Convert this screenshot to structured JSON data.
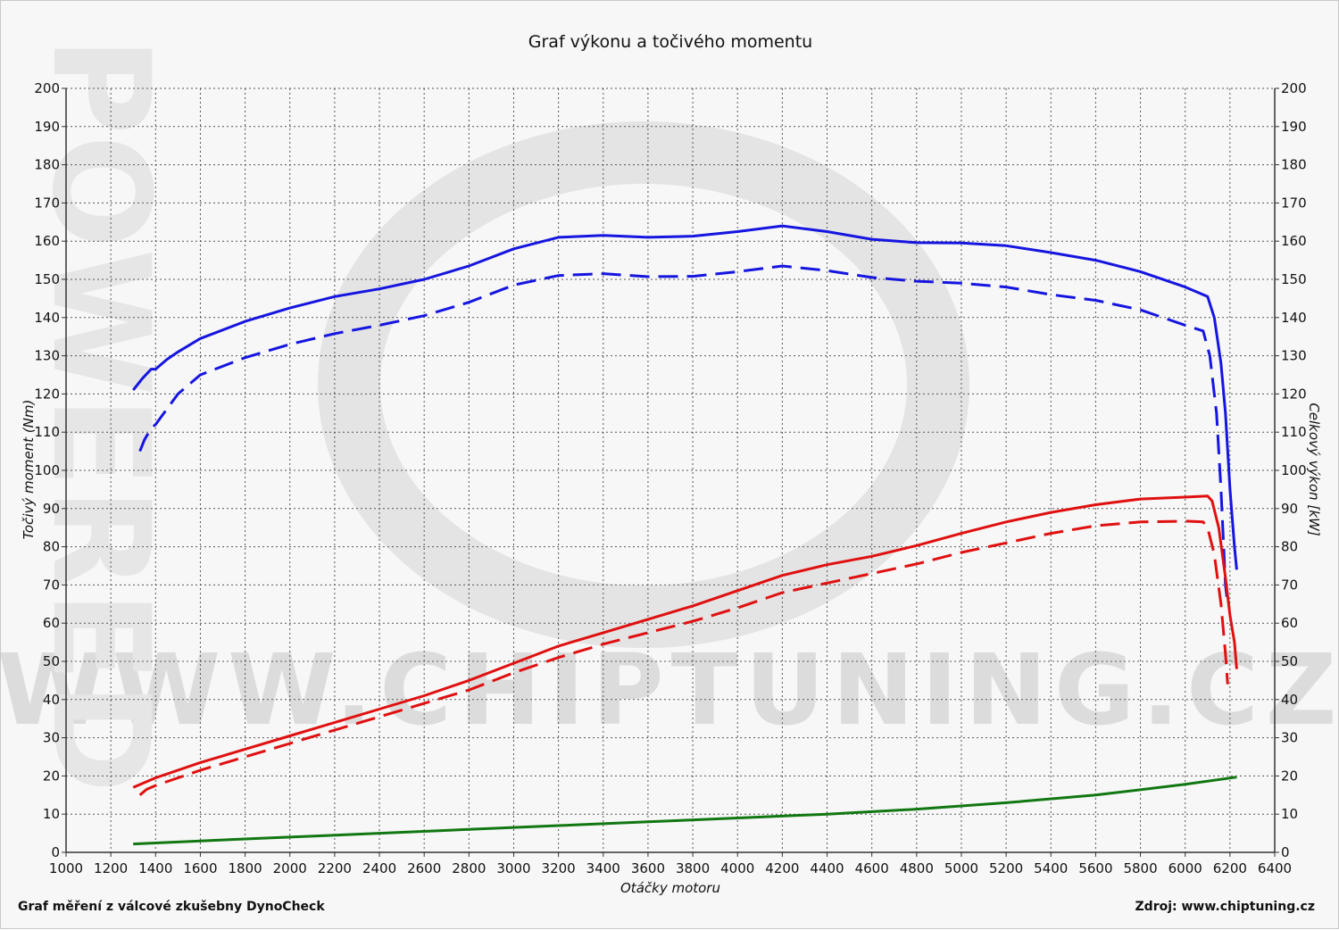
{
  "chart_data": {
    "type": "line",
    "title": "Graf výkonu a točivého momentu",
    "xlabel": "Otáčky motoru",
    "ylabel_left": "Točivý moment (Nm)",
    "ylabel_right": "Celkový výkon [kW]",
    "xlim": [
      1000,
      6400
    ],
    "ylim": [
      0,
      200
    ],
    "x_ticks": [
      1000,
      1200,
      1400,
      1600,
      1800,
      2000,
      2200,
      2400,
      2600,
      2800,
      3000,
      3200,
      3400,
      3600,
      3800,
      4000,
      4200,
      4400,
      4600,
      4800,
      5000,
      5200,
      5400,
      5600,
      5800,
      6000,
      6200,
      6400
    ],
    "y_ticks": [
      0,
      10,
      20,
      30,
      40,
      50,
      60,
      70,
      80,
      90,
      100,
      110,
      120,
      130,
      140,
      150,
      160,
      170,
      180,
      190,
      200
    ],
    "grid": true,
    "series": [
      {
        "color": "#1515e0",
        "dash": "solid",
        "points": [
          [
            1300,
            121
          ],
          [
            1340,
            124
          ],
          [
            1380,
            126.5
          ],
          [
            1400,
            126.5
          ],
          [
            1450,
            129
          ],
          [
            1500,
            131
          ],
          [
            1600,
            134.5
          ],
          [
            1800,
            139
          ],
          [
            2000,
            142.5
          ],
          [
            2200,
            145.5
          ],
          [
            2400,
            147.5
          ],
          [
            2600,
            150
          ],
          [
            2800,
            153.5
          ],
          [
            3000,
            158
          ],
          [
            3200,
            161
          ],
          [
            3400,
            161.5
          ],
          [
            3600,
            161
          ],
          [
            3800,
            161.3
          ],
          [
            4000,
            162.5
          ],
          [
            4200,
            164
          ],
          [
            4400,
            162.5
          ],
          [
            4600,
            160.5
          ],
          [
            4800,
            159.6
          ],
          [
            5000,
            159.5
          ],
          [
            5200,
            158.8
          ],
          [
            5400,
            157
          ],
          [
            5600,
            155
          ],
          [
            5800,
            152
          ],
          [
            6000,
            148
          ],
          [
            6100,
            145.5
          ],
          [
            6130,
            140
          ],
          [
            6160,
            128
          ],
          [
            6180,
            115
          ],
          [
            6200,
            95
          ],
          [
            6220,
            80
          ],
          [
            6230,
            74
          ]
        ]
      },
      {
        "color": "#1515e0",
        "dash": "dashed",
        "points": [
          [
            1330,
            105
          ],
          [
            1350,
            108
          ],
          [
            1380,
            111
          ],
          [
            1400,
            112
          ],
          [
            1450,
            116
          ],
          [
            1500,
            120
          ],
          [
            1600,
            125
          ],
          [
            1800,
            129.5
          ],
          [
            2000,
            133
          ],
          [
            2200,
            135.8
          ],
          [
            2400,
            138
          ],
          [
            2600,
            140.5
          ],
          [
            2800,
            144
          ],
          [
            3000,
            148.5
          ],
          [
            3200,
            151
          ],
          [
            3400,
            151.5
          ],
          [
            3600,
            150.7
          ],
          [
            3800,
            150.8
          ],
          [
            4000,
            152
          ],
          [
            4200,
            153.5
          ],
          [
            4400,
            152.3
          ],
          [
            4600,
            150.5
          ],
          [
            4800,
            149.5
          ],
          [
            5000,
            149
          ],
          [
            5200,
            148
          ],
          [
            5400,
            146
          ],
          [
            5600,
            144.5
          ],
          [
            5800,
            142
          ],
          [
            6000,
            138
          ],
          [
            6080,
            136.5
          ],
          [
            6110,
            130
          ],
          [
            6140,
            115
          ],
          [
            6160,
            95
          ],
          [
            6180,
            70
          ],
          [
            6190,
            65
          ]
        ]
      },
      {
        "color": "#e01010",
        "dash": "solid",
        "points": [
          [
            1300,
            17
          ],
          [
            1400,
            19.5
          ],
          [
            1600,
            23.5
          ],
          [
            1800,
            27
          ],
          [
            2000,
            30.5
          ],
          [
            2200,
            34
          ],
          [
            2400,
            37.5
          ],
          [
            2600,
            41
          ],
          [
            2800,
            45
          ],
          [
            3000,
            49.5
          ],
          [
            3200,
            54
          ],
          [
            3400,
            57.5
          ],
          [
            3600,
            61
          ],
          [
            3800,
            64.5
          ],
          [
            4000,
            68.5
          ],
          [
            4200,
            72.5
          ],
          [
            4400,
            75.3
          ],
          [
            4600,
            77.5
          ],
          [
            4800,
            80.3
          ],
          [
            5000,
            83.5
          ],
          [
            5200,
            86.5
          ],
          [
            5400,
            89
          ],
          [
            5600,
            91
          ],
          [
            5800,
            92.5
          ],
          [
            6000,
            93
          ],
          [
            6100,
            93.3
          ],
          [
            6120,
            92
          ],
          [
            6150,
            85
          ],
          [
            6180,
            72
          ],
          [
            6200,
            62
          ],
          [
            6220,
            55
          ],
          [
            6230,
            48
          ]
        ]
      },
      {
        "color": "#e01010",
        "dash": "dashed",
        "points": [
          [
            1330,
            15
          ],
          [
            1360,
            16.5
          ],
          [
            1400,
            17.5
          ],
          [
            1600,
            21.5
          ],
          [
            1800,
            25
          ],
          [
            2000,
            28.5
          ],
          [
            2200,
            32
          ],
          [
            2400,
            35.5
          ],
          [
            2600,
            39
          ],
          [
            2800,
            42.5
          ],
          [
            3000,
            47
          ],
          [
            3200,
            51
          ],
          [
            3400,
            54.5
          ],
          [
            3600,
            57.5
          ],
          [
            3800,
            60.5
          ],
          [
            4000,
            64
          ],
          [
            4200,
            68
          ],
          [
            4400,
            70.5
          ],
          [
            4600,
            73
          ],
          [
            4800,
            75.5
          ],
          [
            5000,
            78.5
          ],
          [
            5200,
            81
          ],
          [
            5400,
            83.5
          ],
          [
            5600,
            85.5
          ],
          [
            5800,
            86.5
          ],
          [
            6000,
            86.7
          ],
          [
            6080,
            86.5
          ],
          [
            6100,
            85
          ],
          [
            6130,
            78
          ],
          [
            6160,
            65
          ],
          [
            6180,
            52
          ],
          [
            6190,
            44
          ]
        ]
      },
      {
        "color": "#117711",
        "dash": "solid",
        "points": [
          [
            1300,
            2.2
          ],
          [
            1600,
            3
          ],
          [
            2000,
            4
          ],
          [
            2400,
            5
          ],
          [
            2800,
            6
          ],
          [
            3200,
            7
          ],
          [
            3600,
            8
          ],
          [
            4000,
            9
          ],
          [
            4400,
            10
          ],
          [
            4800,
            11.3
          ],
          [
            5200,
            13
          ],
          [
            5600,
            15
          ],
          [
            6000,
            17.8
          ],
          [
            6230,
            19.7
          ]
        ]
      }
    ]
  },
  "footer": {
    "left": "Graf měření z válcové zkušebny DynoCheck",
    "right": "Zdroj: www.chiptuning.cz"
  },
  "watermark": {
    "text": "WWW.CHIPTUNING.CZ",
    "side": "POWERED"
  }
}
